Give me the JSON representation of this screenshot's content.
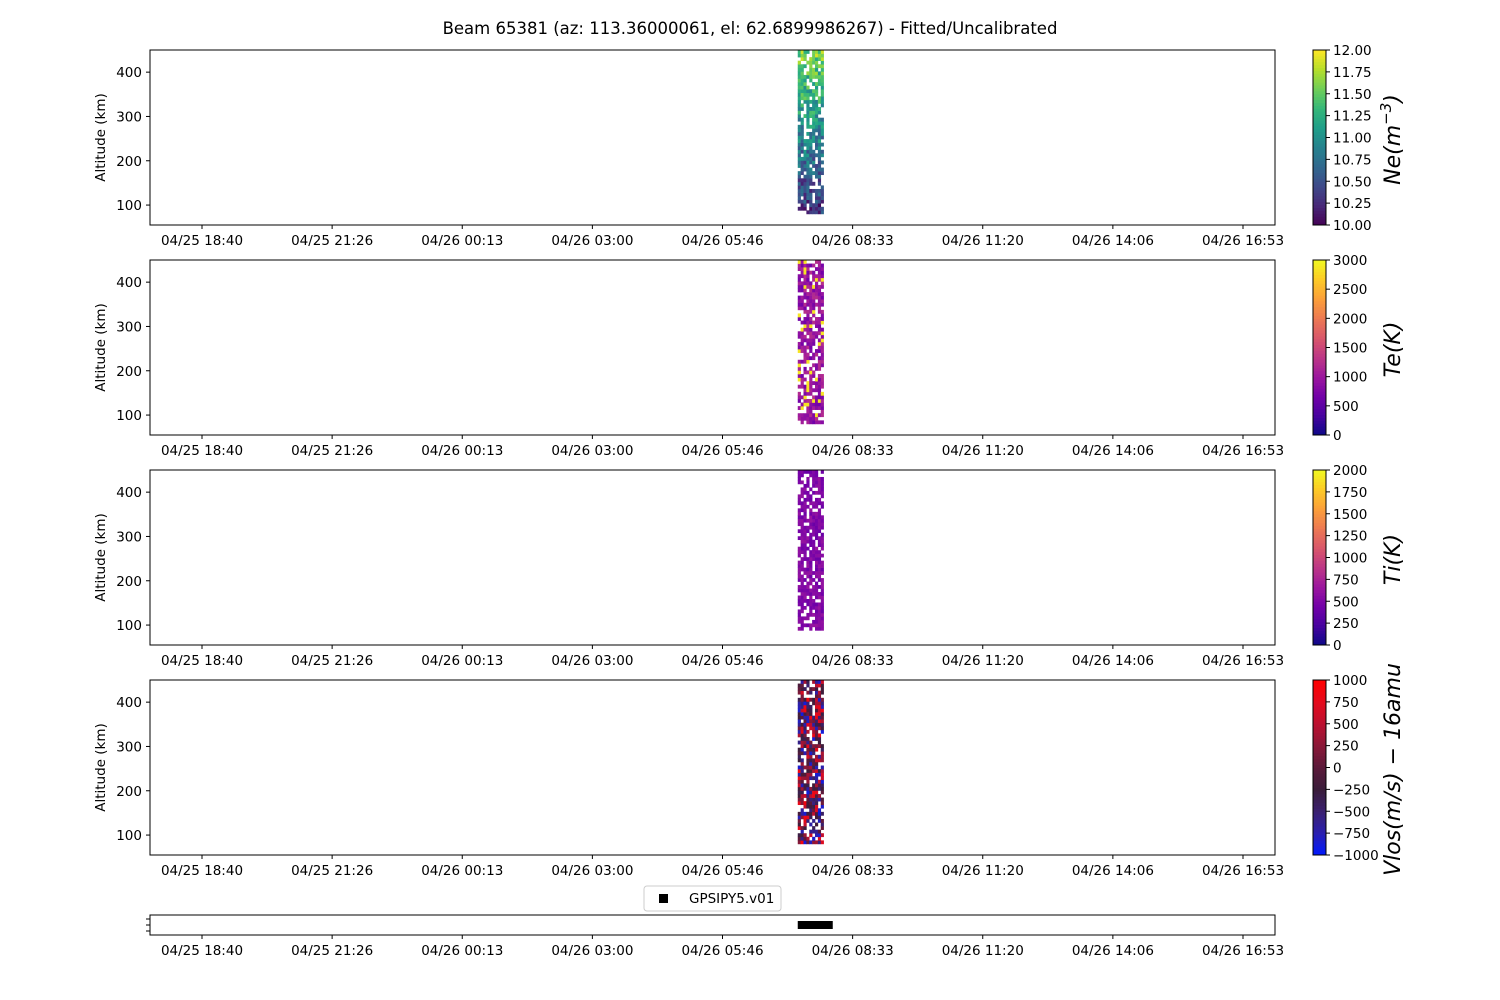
{
  "title": "Beam 65381 (az: 113.36000061, el: 62.6899986267) - Fitted/Uncalibrated",
  "chart_data": [
    {
      "type": "heatmap",
      "ylabel": "Altitude (km)",
      "ylim": [
        55,
        450
      ],
      "yticks": [
        "100",
        "200",
        "300",
        "400"
      ],
      "xticks": [
        "04/25 18:40",
        "04/25 21:26",
        "04/26 00:13",
        "04/26 03:00",
        "04/26 05:46",
        "04/26 08:33",
        "04/26 11:20",
        "04/26 14:06",
        "04/26 16:53"
      ],
      "data_time_range": [
        "04/26 07:20",
        "04/26 07:53"
      ],
      "data_alt_range": [
        80,
        450
      ],
      "colormap": "viridis",
      "colorbar": {
        "label": "Ne(m^-3)",
        "label_main": "Ne(m",
        "label_sup": "−3",
        "label_close": ")",
        "range": [
          10.0,
          12.0
        ],
        "ticks": [
          "10.00",
          "10.25",
          "10.50",
          "10.75",
          "11.00",
          "11.25",
          "11.50",
          "11.75",
          "12.00"
        ]
      }
    },
    {
      "type": "heatmap",
      "ylabel": "Altitude (km)",
      "ylim": [
        55,
        450
      ],
      "yticks": [
        "100",
        "200",
        "300",
        "400"
      ],
      "xticks": [
        "04/25 18:40",
        "04/25 21:26",
        "04/26 00:13",
        "04/26 03:00",
        "04/26 05:46",
        "04/26 08:33",
        "04/26 11:20",
        "04/26 14:06",
        "04/26 16:53"
      ],
      "data_time_range": [
        "04/26 07:20",
        "04/26 07:53"
      ],
      "data_alt_range": [
        80,
        450
      ],
      "colormap": "plasma",
      "colorbar": {
        "label": "Te(K)",
        "range": [
          0,
          3000
        ],
        "ticks": [
          "0",
          "500",
          "1000",
          "1500",
          "2000",
          "2500",
          "3000"
        ]
      }
    },
    {
      "type": "heatmap",
      "ylabel": "Altitude (km)",
      "ylim": [
        55,
        450
      ],
      "yticks": [
        "100",
        "200",
        "300",
        "400"
      ],
      "xticks": [
        "04/25 18:40",
        "04/25 21:26",
        "04/26 00:13",
        "04/26 03:00",
        "04/26 05:46",
        "04/26 08:33",
        "04/26 11:20",
        "04/26 14:06",
        "04/26 16:53"
      ],
      "data_time_range": [
        "04/26 07:20",
        "04/26 07:53"
      ],
      "data_alt_range": [
        88,
        450
      ],
      "colormap": "plasma",
      "colorbar": {
        "label": "Ti(K)",
        "range": [
          0,
          2000
        ],
        "ticks": [
          "0",
          "250",
          "500",
          "750",
          "1000",
          "1250",
          "1500",
          "1750",
          "2000"
        ]
      }
    },
    {
      "type": "heatmap",
      "ylabel": "Altitude (km)",
      "ylim": [
        55,
        450
      ],
      "yticks": [
        "100",
        "200",
        "300",
        "400"
      ],
      "xticks": [
        "04/25 18:40",
        "04/25 21:26",
        "04/26 00:13",
        "04/26 03:00",
        "04/26 05:46",
        "04/26 08:33",
        "04/26 11:20",
        "04/26 14:06",
        "04/26 16:53"
      ],
      "data_time_range": [
        "04/26 07:20",
        "04/26 07:53"
      ],
      "data_alt_range": [
        80,
        450
      ],
      "colormap": "bwr-dark",
      "colorbar": {
        "label": "Vlos(m/s) − 16amu",
        "range": [
          -1000,
          1000
        ],
        "ticks": [
          "−1000",
          "−750",
          "−500",
          "−250",
          "0",
          "250",
          "500",
          "750",
          "1000"
        ]
      }
    },
    {
      "type": "scatter",
      "legend": [
        "GPSIPY5.v01"
      ],
      "legend_placement": "top-center",
      "xticks": [
        "04/25 18:40",
        "04/25 21:26",
        "04/26 00:13",
        "04/26 03:00",
        "04/26 05:46",
        "04/26 08:33",
        "04/26 11:20",
        "04/26 14:06",
        "04/26 16:53"
      ],
      "data_time_range": [
        "04/26 07:20",
        "04/26 08:00"
      ]
    }
  ]
}
